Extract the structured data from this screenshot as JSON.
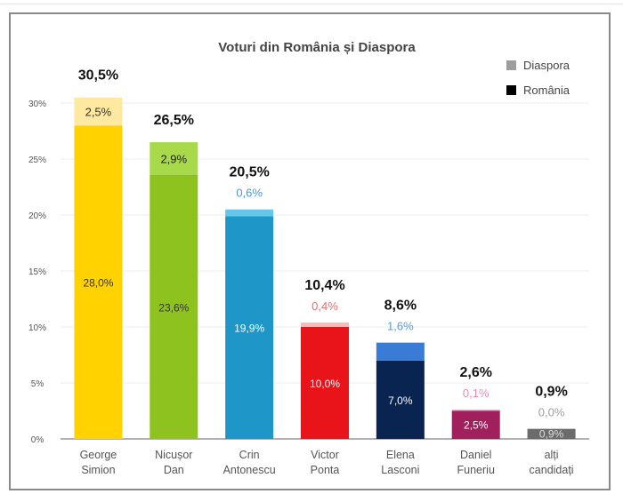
{
  "chart_data": {
    "type": "bar",
    "stacked": true,
    "title": "Voturi din România și Diaspora",
    "categories": [
      [
        "George",
        "Simion"
      ],
      [
        "Nicușor",
        "Dan"
      ],
      [
        "Crin",
        "Antonescu"
      ],
      [
        "Victor",
        "Ponta"
      ],
      [
        "Elena",
        "Lasconi"
      ],
      [
        "Daniel",
        "Funeriu"
      ],
      [
        "alți",
        "candidați"
      ]
    ],
    "series": [
      {
        "name": "România",
        "values": [
          28.0,
          23.6,
          19.9,
          10.0,
          7.0,
          2.5,
          0.9
        ],
        "labels": [
          "28,0%",
          "23,6%",
          "19,9%",
          "10,0%",
          "7,0%",
          "2,5%",
          "0,9%"
        ]
      },
      {
        "name": "Diaspora",
        "values": [
          2.5,
          2.9,
          0.6,
          0.4,
          1.6,
          0.1,
          0.0
        ],
        "labels": [
          "2,5%",
          "2,9%",
          "0,6%",
          "0,4%",
          "1,6%",
          "0,1%",
          "0,0%"
        ]
      }
    ],
    "totals": [
      "30,5%",
      "26,5%",
      "20,5%",
      "10,4%",
      "8,6%",
      "2,6%",
      "0,9%"
    ],
    "ylim": [
      0,
      30
    ],
    "yticks": [
      "0%",
      "5%",
      "10%",
      "15%",
      "20%",
      "25%",
      "30%"
    ],
    "grid": true,
    "legend": {
      "position": "top-right",
      "entries": [
        {
          "label": "Diaspora",
          "color": "#9e9e9e"
        },
        {
          "label": "România",
          "color": "#000000"
        }
      ]
    },
    "colors": {
      "romania": [
        "#FFD200",
        "#8DC21F",
        "#1E96C8",
        "#E8141A",
        "#0A2452",
        "#A0205E",
        "#6B6B6B"
      ],
      "diaspora": [
        "#FFE9A0",
        "#A8D94A",
        "#64C8EA",
        "#FFB8B8",
        "#3A7BD5",
        "#F090C0",
        "#9E9E9E"
      ],
      "diaspora_label": [
        "#333333",
        "#222222",
        "#4A9ACB",
        "#E07070",
        "#5B9BD5",
        "#E88BB6",
        "#A0A0A0"
      ]
    }
  }
}
